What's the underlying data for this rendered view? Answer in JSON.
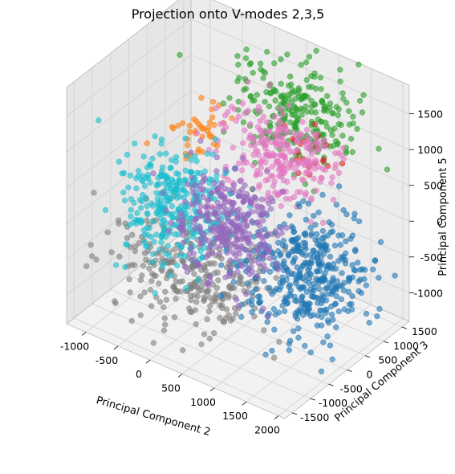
{
  "chart_data": {
    "type": "scatter",
    "projection": "3d",
    "title": "Projection onto V-modes 2,3,5",
    "xlabel": "Principal Component 2",
    "ylabel": "Principal Component 3",
    "zlabel": "Principal Component 5",
    "x_ticks": [
      "-1000",
      "-500",
      "0",
      "500",
      "1000",
      "1500",
      "2000"
    ],
    "y_ticks": [
      "-1500",
      "-1000",
      "-500",
      "0",
      "500",
      "1000",
      "1500"
    ],
    "z_ticks": [
      "-1000",
      "-500",
      "0",
      "500",
      "1000",
      "1500"
    ],
    "xlim": [
      -1300,
      2100
    ],
    "ylim": [
      -1700,
      1700
    ],
    "zlim": [
      -1400,
      1900
    ],
    "grid": true,
    "pane_color": "#f2f2f2",
    "marker_alpha": 0.6,
    "clusters": [
      {
        "color": "#2ca02c",
        "center": [
          700,
          1100,
          1200
        ],
        "spread": [
          450,
          350,
          300
        ],
        "count": 260
      },
      {
        "color": "#ff7f0e",
        "center": [
          -500,
          400,
          800
        ],
        "spread": [
          200,
          200,
          200
        ],
        "count": 40
      },
      {
        "color": "#d62728",
        "center": [
          900,
          1200,
          700
        ],
        "spread": [
          200,
          200,
          150
        ],
        "count": 20
      },
      {
        "color": "#e377c2",
        "center": [
          700,
          600,
          800
        ],
        "spread": [
          420,
          350,
          280
        ],
        "count": 260
      },
      {
        "color": "#7f7f7f",
        "center": [
          0,
          -500,
          -700
        ],
        "spread": [
          550,
          400,
          300
        ],
        "count": 300
      },
      {
        "color": "#1f77b4",
        "center": [
          1300,
          300,
          -500
        ],
        "spread": [
          400,
          500,
          380
        ],
        "count": 420
      },
      {
        "color": "#17becf",
        "center": [
          -700,
          200,
          -300
        ],
        "spread": [
          350,
          400,
          350
        ],
        "count": 320
      },
      {
        "color": "#9467bd",
        "center": [
          200,
          100,
          -150
        ],
        "spread": [
          350,
          350,
          330
        ],
        "count": 320
      }
    ]
  }
}
